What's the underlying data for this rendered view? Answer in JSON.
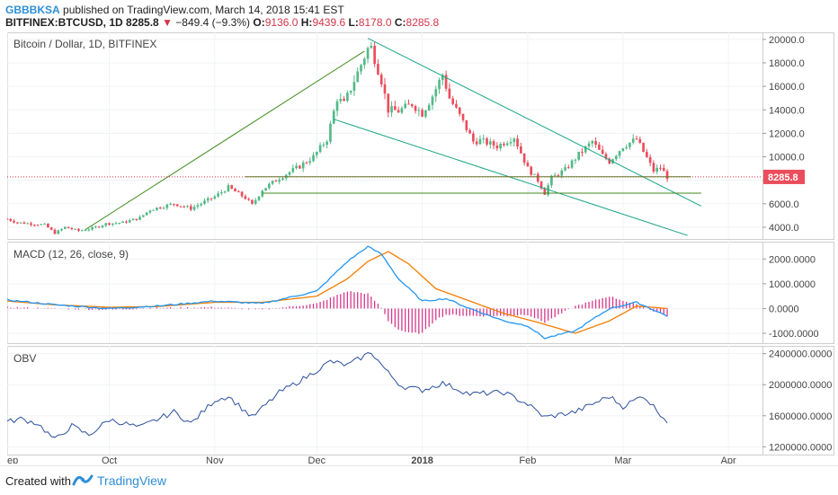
{
  "header": {
    "author": "GBBBKSA",
    "published": "published on TradingView.com, March 14, 2018 15:41 EST",
    "symbol": "BITFINEX:BTCUSD, 1D",
    "last": "8285.8",
    "change": "−849.4 (−9.3%)",
    "open_label": "O:",
    "open": "9136.0",
    "high_label": "H:",
    "high": "9439.6",
    "low_label": "L:",
    "low": "8178.0",
    "close_label": "C:",
    "close": "8285.8"
  },
  "footer": {
    "created": "Created with",
    "brand": "TradingView"
  },
  "colors": {
    "up": "#53b987",
    "down": "#eb4d5c",
    "macd": "#2196f3",
    "signal": "#f57c00",
    "hist": "#d6388d",
    "obv": "#2a4f9e",
    "trend": "#3f8a1c",
    "channel": "#1aa587",
    "price_line": "#d3364a",
    "price_tag": "#eb4d5c"
  },
  "chart_data": [
    {
      "type": "candlestick",
      "title": "Bitcoin / Dollar, 1D, BITFINEX",
      "ylim": [
        3000,
        20600
      ],
      "yticks": [
        "20000.0",
        "18000.0",
        "16000.0",
        "14000.0",
        "12000.0",
        "10000.0",
        "8000.0",
        "6000.0",
        "4000.0"
      ],
      "ytick_values": [
        20000,
        18000,
        16000,
        14000,
        12000,
        10000,
        8000,
        6000,
        4000
      ],
      "last_price": "8285.8",
      "x_start": "2017-09-01",
      "x_end": "2018-04-11",
      "xticks": [
        "ep",
        "Oct",
        "Nov",
        "Dec",
        "2018",
        "Feb",
        "Mar",
        "Apr"
      ],
      "xtick_dates": [
        "2017-09-01",
        "2017-10-01",
        "2017-11-01",
        "2017-12-01",
        "2018-01-01",
        "2018-02-01",
        "2018-03-01",
        "2018-04-01"
      ],
      "close_anchors": [
        [
          "2017-09-01",
          4700
        ],
        [
          "2017-09-04",
          4400
        ],
        [
          "2017-09-08",
          4300
        ],
        [
          "2017-09-12",
          4200
        ],
        [
          "2017-09-15",
          3500
        ],
        [
          "2017-09-18",
          4000
        ],
        [
          "2017-09-22",
          3700
        ],
        [
          "2017-09-26",
          3900
        ],
        [
          "2017-09-30",
          4300
        ],
        [
          "2017-10-05",
          4400
        ],
        [
          "2017-10-10",
          4800
        ],
        [
          "2017-10-13",
          5500
        ],
        [
          "2017-10-20",
          6000
        ],
        [
          "2017-10-25",
          5600
        ],
        [
          "2017-11-01",
          6600
        ],
        [
          "2017-11-05",
          7400
        ],
        [
          "2017-11-10",
          6500
        ],
        [
          "2017-11-12",
          5900
        ],
        [
          "2017-11-15",
          7200
        ],
        [
          "2017-11-20",
          8200
        ],
        [
          "2017-11-26",
          9200
        ],
        [
          "2017-11-30",
          10000
        ],
        [
          "2017-12-04",
          11500
        ],
        [
          "2017-12-07",
          15000
        ],
        [
          "2017-12-09",
          14500
        ],
        [
          "2017-12-12",
          16500
        ],
        [
          "2017-12-16",
          19200
        ],
        [
          "2017-12-17",
          19300
        ],
        [
          "2017-12-20",
          16500
        ],
        [
          "2017-12-22",
          14000
        ],
        [
          "2017-12-25",
          13900
        ],
        [
          "2017-12-29",
          14500
        ],
        [
          "2018-01-01",
          13700
        ],
        [
          "2018-01-04",
          15200
        ],
        [
          "2018-01-07",
          17000
        ],
        [
          "2018-01-09",
          15000
        ],
        [
          "2018-01-12",
          13500
        ],
        [
          "2018-01-16",
          11300
        ],
        [
          "2018-01-18",
          11400
        ],
        [
          "2018-01-23",
          10900
        ],
        [
          "2018-01-28",
          11700
        ],
        [
          "2018-02-01",
          9000
        ],
        [
          "2018-02-04",
          8000
        ],
        [
          "2018-02-06",
          6900
        ],
        [
          "2018-02-08",
          8200
        ],
        [
          "2018-02-12",
          8900
        ],
        [
          "2018-02-16",
          10200
        ],
        [
          "2018-02-20",
          11300
        ],
        [
          "2018-02-23",
          10100
        ],
        [
          "2018-02-25",
          9600
        ],
        [
          "2018-03-01",
          10900
        ],
        [
          "2018-03-05",
          11500
        ],
        [
          "2018-03-08",
          9900
        ],
        [
          "2018-03-10",
          8800
        ],
        [
          "2018-03-12",
          9100
        ],
        [
          "2018-03-14",
          8285.8
        ]
      ],
      "lines": [
        {
          "role": "trend",
          "points": [
            [
              "2017-09-24",
              3800
            ],
            [
              "2017-12-15",
              19000
            ]
          ]
        },
        {
          "role": "channel-top",
          "points": [
            [
              "2017-12-16",
              20100
            ],
            [
              "2018-03-24",
              5800
            ]
          ]
        },
        {
          "role": "channel-bottom",
          "points": [
            [
              "2017-12-06",
              13200
            ],
            [
              "2018-03-20",
              3300
            ]
          ]
        },
        {
          "role": "support",
          "points": [
            [
              "2017-11-10",
              8300
            ],
            [
              "2018-03-21",
              8300
            ]
          ]
        },
        {
          "role": "support",
          "points": [
            [
              "2017-11-15",
              6900
            ],
            [
              "2018-03-24",
              6900
            ]
          ]
        }
      ]
    },
    {
      "type": "line",
      "title": "MACD (12, 26, close, 9)",
      "ylim": [
        -1400,
        2700
      ],
      "yticks": [
        "2000.0000",
        "1000.0000",
        "0.0000",
        "-1000.0000"
      ],
      "ytick_values": [
        2000,
        1000,
        0,
        -1000
      ],
      "series": [
        {
          "name": "MACD",
          "anchors": [
            [
              "2017-09-01",
              350
            ],
            [
              "2017-09-15",
              150
            ],
            [
              "2017-10-01",
              0
            ],
            [
              "2017-10-15",
              100
            ],
            [
              "2017-11-01",
              300
            ],
            [
              "2017-11-15",
              200
            ],
            [
              "2017-12-01",
              700
            ],
            [
              "2017-12-10",
              1900
            ],
            [
              "2017-12-16",
              2500
            ],
            [
              "2017-12-20",
              2200
            ],
            [
              "2017-12-25",
              1200
            ],
            [
              "2018-01-01",
              300
            ],
            [
              "2018-01-08",
              400
            ],
            [
              "2018-01-15",
              0
            ],
            [
              "2018-01-25",
              -500
            ],
            [
              "2018-02-01",
              -700
            ],
            [
              "2018-02-06",
              -1200
            ],
            [
              "2018-02-15",
              -900
            ],
            [
              "2018-02-25",
              0
            ],
            [
              "2018-03-05",
              250
            ],
            [
              "2018-03-14",
              -300
            ]
          ]
        },
        {
          "name": "Signal",
          "anchors": [
            [
              "2017-09-01",
              300
            ],
            [
              "2017-09-15",
              150
            ],
            [
              "2017-10-01",
              50
            ],
            [
              "2017-10-15",
              80
            ],
            [
              "2017-11-01",
              250
            ],
            [
              "2017-11-15",
              250
            ],
            [
              "2017-12-01",
              500
            ],
            [
              "2017-12-10",
              1200
            ],
            [
              "2017-12-16",
              1900
            ],
            [
              "2017-12-22",
              2300
            ],
            [
              "2017-12-28",
              1800
            ],
            [
              "2018-01-05",
              800
            ],
            [
              "2018-01-15",
              300
            ],
            [
              "2018-01-25",
              -200
            ],
            [
              "2018-02-05",
              -600
            ],
            [
              "2018-02-15",
              -1000
            ],
            [
              "2018-02-25",
              -500
            ],
            [
              "2018-03-05",
              100
            ],
            [
              "2018-03-14",
              0
            ]
          ]
        }
      ]
    },
    {
      "type": "line",
      "title": "OBV",
      "ylim": [
        1100000,
        2500000
      ],
      "yticks": [
        "2400000.0000",
        "2000000.0000",
        "1600000.0000",
        "1200000.0000"
      ],
      "ytick_values": [
        2400000,
        2000000,
        1600000,
        1200000
      ],
      "series": [
        {
          "name": "OBV",
          "anchors": [
            [
              "2017-09-01",
              1520000
            ],
            [
              "2017-09-05",
              1560000
            ],
            [
              "2017-09-10",
              1500000
            ],
            [
              "2017-09-15",
              1290000
            ],
            [
              "2017-09-20",
              1470000
            ],
            [
              "2017-09-25",
              1350000
            ],
            [
              "2017-10-01",
              1550000
            ],
            [
              "2017-10-10",
              1450000
            ],
            [
              "2017-10-20",
              1650000
            ],
            [
              "2017-10-25",
              1500000
            ],
            [
              "2017-11-01",
              1800000
            ],
            [
              "2017-11-05",
              1850000
            ],
            [
              "2017-11-12",
              1580000
            ],
            [
              "2017-11-20",
              1900000
            ],
            [
              "2017-11-28",
              2100000
            ],
            [
              "2017-12-05",
              2300000
            ],
            [
              "2017-12-10",
              2250000
            ],
            [
              "2017-12-17",
              2420000
            ],
            [
              "2017-12-22",
              2150000
            ],
            [
              "2017-12-26",
              1980000
            ],
            [
              "2018-01-01",
              1930000
            ],
            [
              "2018-01-07",
              2020000
            ],
            [
              "2018-01-15",
              1880000
            ],
            [
              "2018-01-25",
              1900000
            ],
            [
              "2018-02-01",
              1750000
            ],
            [
              "2018-02-06",
              1580000
            ],
            [
              "2018-02-15",
              1650000
            ],
            [
              "2018-02-25",
              1850000
            ],
            [
              "2018-03-01",
              1720000
            ],
            [
              "2018-03-07",
              1860000
            ],
            [
              "2018-03-14",
              1530000
            ]
          ]
        }
      ]
    }
  ]
}
